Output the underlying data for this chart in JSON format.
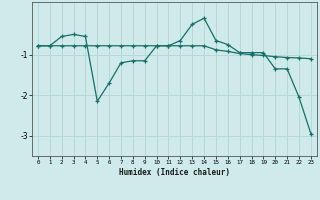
{
  "xlabel": "Humidex (Indice chaleur)",
  "bg_color": "#ceeaea",
  "grid_color": "#b8d8d8",
  "line_color": "#1a6e68",
  "line1": {
    "x": [
      0,
      1,
      2,
      3,
      4,
      5,
      6,
      7,
      8,
      9,
      10,
      11,
      12,
      13,
      14,
      15,
      16,
      17,
      18,
      19,
      20,
      21,
      22,
      23
    ],
    "y": [
      -0.78,
      -0.78,
      -0.78,
      -0.78,
      -0.78,
      -0.78,
      -0.78,
      -0.78,
      -0.78,
      -0.78,
      -0.78,
      -0.78,
      -0.78,
      -0.78,
      -0.78,
      -0.88,
      -0.92,
      -0.97,
      -1.0,
      -1.02,
      -1.05,
      -1.07,
      -1.08,
      -1.1
    ]
  },
  "line2": {
    "x": [
      0,
      1,
      2,
      3,
      4,
      5,
      6,
      7,
      8,
      9,
      10,
      11,
      12,
      13,
      14,
      15,
      16,
      17,
      18,
      19,
      20,
      21,
      22,
      23
    ],
    "y": [
      -0.78,
      -0.78,
      -0.55,
      -0.5,
      -0.55,
      -2.15,
      -1.7,
      -1.2,
      -1.15,
      -1.15,
      -0.78,
      -0.78,
      -0.65,
      -0.25,
      -0.1,
      -0.65,
      -0.75,
      -0.95,
      -0.95,
      -0.95,
      -1.35,
      -1.35,
      -2.05,
      -2.95
    ]
  },
  "ylim": [
    -3.5,
    0.3
  ],
  "xlim": [
    -0.5,
    23.5
  ],
  "yticks": [
    -3,
    -2,
    -1
  ],
  "xticks": [
    0,
    1,
    2,
    3,
    4,
    5,
    6,
    7,
    8,
    9,
    10,
    11,
    12,
    13,
    14,
    15,
    16,
    17,
    18,
    19,
    20,
    21,
    22,
    23
  ]
}
